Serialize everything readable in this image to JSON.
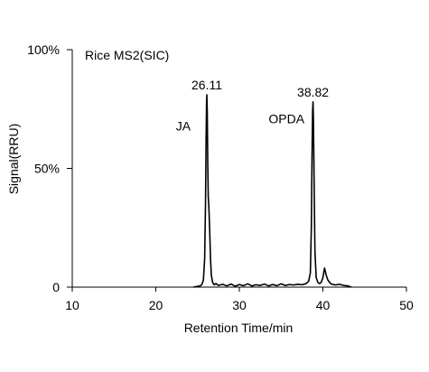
{
  "chart_data": {
    "type": "line",
    "title": "Rice MS2(SIC)",
    "xlabel": "Retention Time/min",
    "ylabel": "Signal(RRU)",
    "xlim": [
      10,
      50
    ],
    "ylim": [
      0,
      100
    ],
    "x_ticks": [
      {
        "value": 10,
        "label": "10"
      },
      {
        "value": 20,
        "label": "20"
      },
      {
        "value": 30,
        "label": "30"
      },
      {
        "value": 40,
        "label": "40"
      },
      {
        "value": 50,
        "label": "50"
      }
    ],
    "y_ticks": [
      {
        "value": 0,
        "label": "0"
      },
      {
        "value": 50,
        "label": "50%"
      },
      {
        "value": 100,
        "label": "100%"
      }
    ],
    "grid": false,
    "line_color": "#000000",
    "annotations": [
      {
        "text": "26.11",
        "x": 26.11,
        "y": 81
      },
      {
        "text": "38.82",
        "x": 38.82,
        "y": 78
      },
      {
        "text": "JA",
        "x": 22.4,
        "y": 66
      },
      {
        "text": "OPDA",
        "x": 33.5,
        "y": 69
      }
    ],
    "series": [
      {
        "x": [
          24.5,
          25.0,
          25.3,
          25.5,
          25.7,
          25.85,
          25.95,
          26.02,
          26.08,
          26.11,
          26.16,
          26.22,
          26.28,
          26.35,
          26.45,
          26.55,
          26.65,
          26.8,
          27.0,
          27.2,
          27.5,
          28.0,
          28.5,
          29.0,
          29.5,
          30.0,
          30.5,
          31.0,
          31.5,
          32.0,
          32.5,
          33.0,
          33.5,
          34.0,
          34.5,
          35.0,
          35.5,
          36.0,
          36.5,
          37.0,
          37.5,
          38.0,
          38.3,
          38.5,
          38.62,
          38.7,
          38.77,
          38.82,
          38.87,
          38.95,
          39.05,
          39.2,
          39.4,
          39.6,
          39.8,
          40.0,
          40.2,
          40.4,
          40.6,
          40.8,
          41.0,
          41.5,
          42.0,
          42.5,
          43.0,
          43.4
        ],
        "y": [
          0,
          0.3,
          0.5,
          1,
          3,
          12,
          35,
          62,
          78,
          81,
          74,
          52,
          38,
          34,
          24,
          12,
          5,
          2,
          1,
          1.5,
          0.7,
          1.2,
          0.5,
          1.3,
          0.4,
          1.1,
          0.6,
          1.4,
          0.5,
          1.0,
          0.7,
          1.3,
          0.5,
          1.1,
          0.6,
          1.4,
          0.7,
          1.1,
          0.9,
          1.2,
          1.0,
          1.5,
          2.5,
          6,
          25,
          55,
          74,
          78,
          70,
          45,
          15,
          4,
          2,
          1.5,
          2,
          4,
          8,
          5,
          3,
          2,
          1.3,
          0.9,
          1.2,
          0.7,
          0.5,
          0
        ]
      }
    ]
  }
}
